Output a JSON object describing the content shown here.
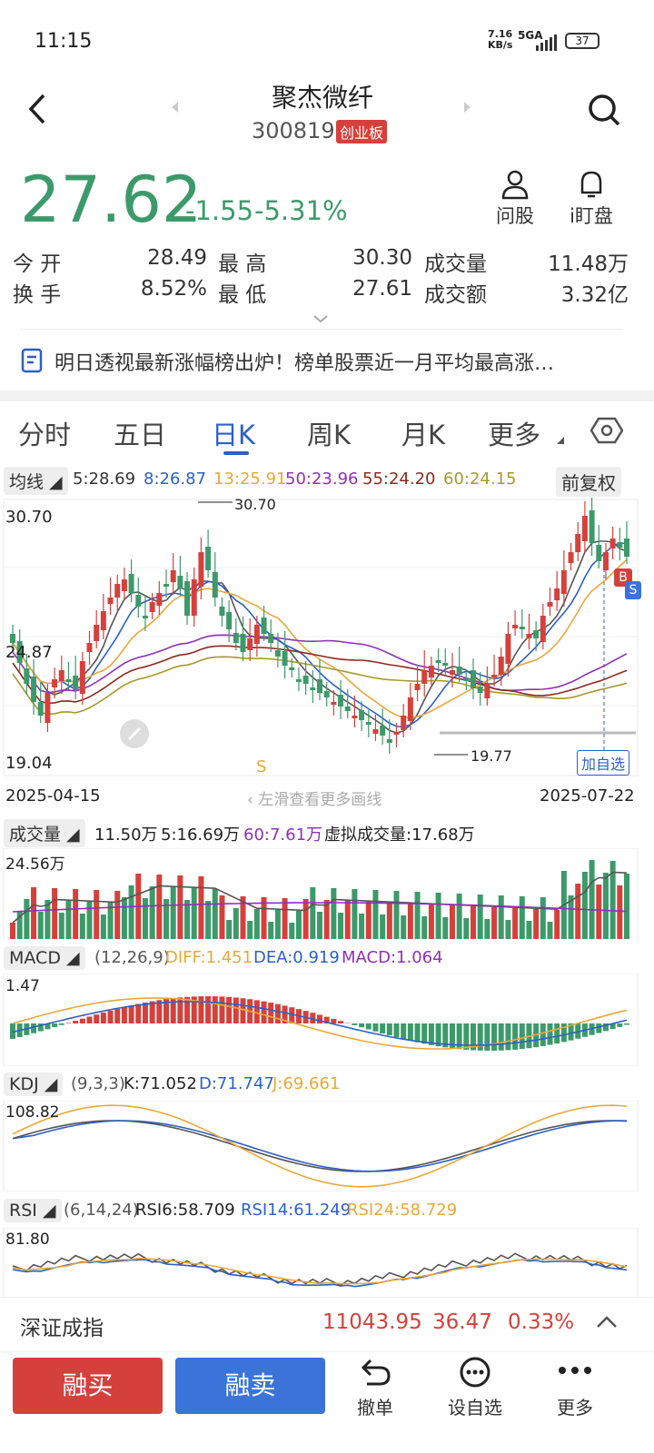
{
  "status": {
    "time": "11:15",
    "speed_top": "7.16",
    "speed_bot": "KB/s",
    "net": "5GA",
    "battery": "37"
  },
  "header": {
    "name": "聚杰微纤",
    "code": "300819",
    "board": "创业板"
  },
  "quote": {
    "price": "27.62",
    "change": "-1.55",
    "pct": "-5.31%",
    "open_label": "今 开",
    "open": "28.49",
    "high_label": "最 高",
    "high": "30.30",
    "vol_label": "成交量",
    "vol": "11.48万",
    "turn_label": "换 手",
    "turn": "8.52%",
    "low_label": "最 低",
    "low": "27.61",
    "amt_label": "成交额",
    "amt": "3.32亿"
  },
  "actions": {
    "ask": "问股",
    "watch": "i盯盘"
  },
  "news": "明日透视最新涨幅榜出炉！榜单股票近一月平均最高涨…",
  "tabs": [
    "分时",
    "五日",
    "日K",
    "周K",
    "月K",
    "更多"
  ],
  "ma": {
    "label": "均线",
    "ma5": "5:28.69",
    "ma8": "8:26.87",
    "ma13": "13:25.91",
    "ma50": "50:23.96",
    "ma55": "55:24.20",
    "ma60": "60:24.15",
    "adjust": "前复权"
  },
  "kchart": {
    "ymax": "30.70",
    "ymid": "24.87",
    "ymin": "19.04",
    "peak": "30.70",
    "trough": "19.77",
    "start_date": "2025-04-15",
    "end_date": "2025-07-22",
    "hint": "左滑查看更多画线",
    "add_watch": "加自选",
    "s_mark": "S",
    "b_badge": "B",
    "s_badge": "S"
  },
  "volume": {
    "label": "成交量",
    "v": "11.50万",
    "ma5": "5:16.69万",
    "ma60": "60:7.61万",
    "virt": "虚拟成交量:17.68万",
    "ymax": "24.56万"
  },
  "macd": {
    "label": "MACD",
    "params": "(12,26,9)",
    "diff": "DIFF:1.451",
    "dea": "DEA:0.919",
    "macd": "MACD:1.064",
    "ymax": "1.47"
  },
  "kdj": {
    "label": "KDJ",
    "params": "(9,3,3)",
    "k": "K:71.052",
    "d": "D:71.747",
    "j": "J:69.661",
    "ymax": "108.82"
  },
  "rsi": {
    "label": "RSI",
    "params": "(6,14,24)",
    "r6": "RSI6:58.709",
    "r14": "RSI14:61.249",
    "r24": "RSI24:58.729",
    "ymax": "81.80"
  },
  "index": {
    "name": "深证成指",
    "value": "11043.95",
    "change": "36.47",
    "pct": "0.33%"
  },
  "bottom": {
    "buy": "融买",
    "sell": "融卖",
    "cancel": "撤单",
    "fav": "设自选",
    "more": "更多"
  }
}
